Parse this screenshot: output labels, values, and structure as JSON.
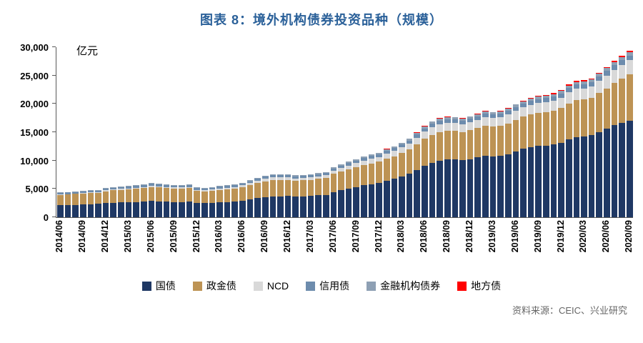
{
  "title": "图表 8：境外机构债券投资品种（规模）",
  "unit_label": "亿元",
  "source": "资料来源：CEIC、兴业研究",
  "colors": {
    "title": "#2A6099",
    "axis": "#595959",
    "treasury": "#1F3864",
    "policy_bank": "#BD9354",
    "ncd": "#D9D9D9",
    "credit": "#6D8CAD",
    "financial_inst": "#8EA0B4",
    "local_gov": "#FF0000"
  },
  "chart_data": {
    "type": "bar",
    "stacked": true,
    "title": "图表 8：境外机构债券投资品种（规模）",
    "ylabel": "亿元",
    "ylim": [
      0,
      30000
    ],
    "yticks": [
      0,
      5000,
      10000,
      15000,
      20000,
      25000,
      30000
    ],
    "ytick_labels": [
      "0",
      "5,000",
      "10,000",
      "15,000",
      "20,000",
      "25,000",
      "30,000"
    ],
    "x_tick_every": 3,
    "legend_position": "bottom",
    "grid": false,
    "x": [
      "2014/06",
      "2014/07",
      "2014/08",
      "2014/09",
      "2014/10",
      "2014/11",
      "2014/12",
      "2015/01",
      "2015/02",
      "2015/03",
      "2015/04",
      "2015/05",
      "2015/06",
      "2015/07",
      "2015/08",
      "2015/09",
      "2015/10",
      "2015/11",
      "2015/12",
      "2016/01",
      "2016/02",
      "2016/03",
      "2016/04",
      "2016/05",
      "2016/06",
      "2016/07",
      "2016/08",
      "2016/09",
      "2016/10",
      "2016/11",
      "2016/12",
      "2017/01",
      "2017/02",
      "2017/03",
      "2017/04",
      "2017/05",
      "2017/06",
      "2017/07",
      "2017/08",
      "2017/09",
      "2017/10",
      "2017/11",
      "2017/12",
      "2018/01",
      "2018/02",
      "2018/03",
      "2018/04",
      "2018/05",
      "2018/06",
      "2018/07",
      "2018/08",
      "2018/09",
      "2018/10",
      "2018/11",
      "2018/12",
      "2019/01",
      "2019/02",
      "2019/03",
      "2019/04",
      "2019/05",
      "2019/06",
      "2019/07",
      "2019/08",
      "2019/09",
      "2019/10",
      "2019/11",
      "2019/12",
      "2020/01",
      "2020/02",
      "2020/03",
      "2020/04",
      "2020/05",
      "2020/06",
      "2020/07",
      "2020/08",
      "2020/09"
    ],
    "series": [
      {
        "name": "国债",
        "color": "#1F3864",
        "values": [
          2100,
          2150,
          2200,
          2250,
          2300,
          2350,
          2500,
          2550,
          2600,
          2650,
          2700,
          2750,
          2850,
          2800,
          2750,
          2700,
          2700,
          2750,
          2550,
          2500,
          2550,
          2650,
          2700,
          2750,
          2950,
          3150,
          3350,
          3550,
          3700,
          3700,
          3750,
          3650,
          3700,
          3750,
          3850,
          3950,
          4450,
          4750,
          5050,
          5350,
          5650,
          5850,
          6050,
          6450,
          6750,
          7150,
          7650,
          8350,
          9050,
          9550,
          9950,
          10150,
          10150,
          10050,
          10250,
          10550,
          10850,
          10750,
          10850,
          11150,
          11650,
          12050,
          12350,
          12550,
          12650,
          12850,
          13150,
          13750,
          14150,
          14250,
          14450,
          15050,
          15650,
          16250,
          16650,
          17000
        ]
      },
      {
        "name": "政金债",
        "color": "#BD9354",
        "values": [
          1850,
          1850,
          1900,
          1900,
          1950,
          1950,
          2100,
          2200,
          2250,
          2250,
          2300,
          2400,
          2500,
          2450,
          2400,
          2350,
          2350,
          2400,
          2100,
          2050,
          2150,
          2200,
          2250,
          2300,
          2400,
          2550,
          2700,
          2800,
          2900,
          2900,
          2850,
          2800,
          2800,
          2850,
          2900,
          2950,
          3200,
          3300,
          3400,
          3500,
          3600,
          3650,
          3750,
          3900,
          4000,
          4150,
          4300,
          4550,
          4800,
          5000,
          5100,
          5150,
          5100,
          5000,
          5100,
          5200,
          5300,
          5250,
          5300,
          5400,
          5550,
          5700,
          5800,
          5850,
          5900,
          5950,
          6100,
          6350,
          6500,
          6500,
          6600,
          6850,
          7100,
          7400,
          7800,
          8200
        ]
      },
      {
        "name": "NCD",
        "color": "#D9D9D9",
        "values": [
          100,
          100,
          100,
          120,
          120,
          130,
          150,
          160,
          170,
          180,
          190,
          200,
          220,
          220,
          210,
          200,
          200,
          210,
          200,
          200,
          210,
          230,
          240,
          250,
          280,
          320,
          360,
          400,
          420,
          420,
          420,
          400,
          410,
          420,
          450,
          480,
          550,
          600,
          650,
          700,
          750,
          800,
          850,
          900,
          950,
          1000,
          1050,
          1150,
          1250,
          1350,
          1400,
          1400,
          1400,
          1380,
          1400,
          1450,
          1500,
          1480,
          1500,
          1550,
          1600,
          1650,
          1700,
          1750,
          1770,
          1800,
          1850,
          1950,
          2000,
          2000,
          2050,
          2150,
          2250,
          2350,
          2450,
          2500
        ]
      },
      {
        "name": "信用债",
        "color": "#6D8CAD",
        "values": [
          250,
          255,
          260,
          265,
          270,
          275,
          290,
          300,
          305,
          310,
          315,
          320,
          330,
          325,
          320,
          315,
          315,
          320,
          300,
          295,
          300,
          310,
          315,
          320,
          335,
          350,
          365,
          380,
          390,
          390,
          390,
          380,
          385,
          390,
          395,
          400,
          420,
          435,
          450,
          465,
          480,
          490,
          500,
          510,
          520,
          530,
          540,
          560,
          580,
          600,
          610,
          610,
          610,
          600,
          610,
          620,
          630,
          625,
          630,
          640,
          655,
          670,
          680,
          690,
          695,
          700,
          710,
          730,
          745,
          745,
          750,
          770,
          790,
          810,
          830,
          850
        ]
      },
      {
        "name": "金融机构债券",
        "color": "#8EA0B4",
        "values": [
          100,
          100,
          105,
          105,
          110,
          110,
          120,
          125,
          125,
          130,
          130,
          135,
          140,
          140,
          135,
          135,
          135,
          135,
          130,
          130,
          130,
          135,
          135,
          140,
          145,
          155,
          165,
          175,
          180,
          180,
          180,
          175,
          178,
          180,
          185,
          190,
          205,
          215,
          225,
          235,
          245,
          250,
          260,
          270,
          280,
          290,
          300,
          320,
          340,
          355,
          365,
          365,
          365,
          360,
          365,
          375,
          385,
          380,
          385,
          395,
          405,
          415,
          425,
          430,
          435,
          440,
          450,
          465,
          475,
          475,
          480,
          495,
          510,
          525,
          540,
          550
        ]
      },
      {
        "name": "地方债",
        "color": "#FF0000",
        "values": [
          0,
          0,
          0,
          0,
          0,
          0,
          0,
          0,
          0,
          0,
          0,
          0,
          0,
          0,
          0,
          0,
          0,
          0,
          0,
          0,
          0,
          0,
          0,
          0,
          0,
          0,
          0,
          0,
          0,
          0,
          0,
          0,
          0,
          0,
          0,
          0,
          0,
          0,
          0,
          0,
          0,
          0,
          0,
          30,
          35,
          40,
          45,
          55,
          65,
          75,
          80,
          80,
          80,
          80,
          85,
          90,
          95,
          95,
          100,
          105,
          115,
          120,
          125,
          130,
          135,
          140,
          150,
          170,
          185,
          185,
          190,
          210,
          230,
          250,
          280,
          300
        ]
      }
    ]
  }
}
